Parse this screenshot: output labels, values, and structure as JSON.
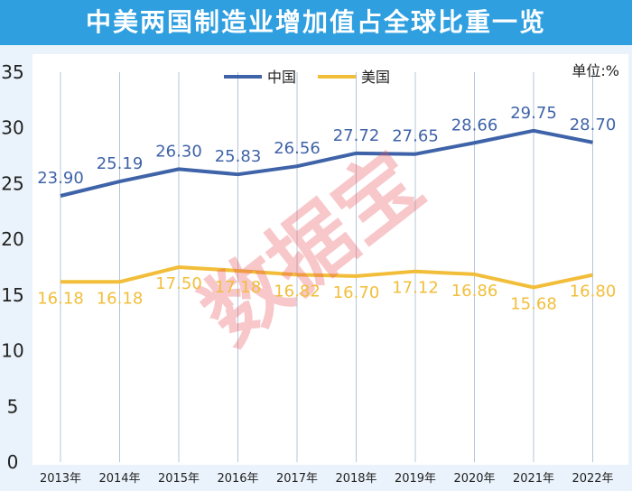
{
  "chart_data": {
    "type": "line",
    "title": "中美两国制造业增加值占全球比重一览",
    "unit": "单位:%",
    "categories": [
      "2013年",
      "2014年",
      "2015年",
      "2016年",
      "2017年",
      "2018年",
      "2019年",
      "2020年",
      "2021年",
      "2022年"
    ],
    "y_ticks": [
      "0",
      "5",
      "10",
      "15",
      "20",
      "25",
      "30",
      "35"
    ],
    "ylim": [
      0,
      35
    ],
    "grid": "vertical",
    "legend_position": "top-center",
    "watermark": "数据宝",
    "series": [
      {
        "name": "中国",
        "color": "#3f63a8",
        "values": [
          23.9,
          25.19,
          26.3,
          25.83,
          26.56,
          27.72,
          27.65,
          28.66,
          29.75,
          28.7
        ],
        "labels": [
          "23.90",
          "25.19",
          "26.30",
          "25.83",
          "26.56",
          "27.72",
          "27.65",
          "28.66",
          "29.75",
          "28.70"
        ]
      },
      {
        "name": "美国",
        "color": "#f2be3a",
        "values": [
          16.18,
          16.18,
          17.5,
          17.18,
          16.82,
          16.7,
          17.12,
          16.86,
          15.68,
          16.8
        ],
        "labels": [
          "16.18",
          "16.18",
          "17.50",
          "17.18",
          "16.82",
          "16.70",
          "17.12",
          "16.86",
          "15.68",
          "16.80"
        ]
      }
    ]
  }
}
